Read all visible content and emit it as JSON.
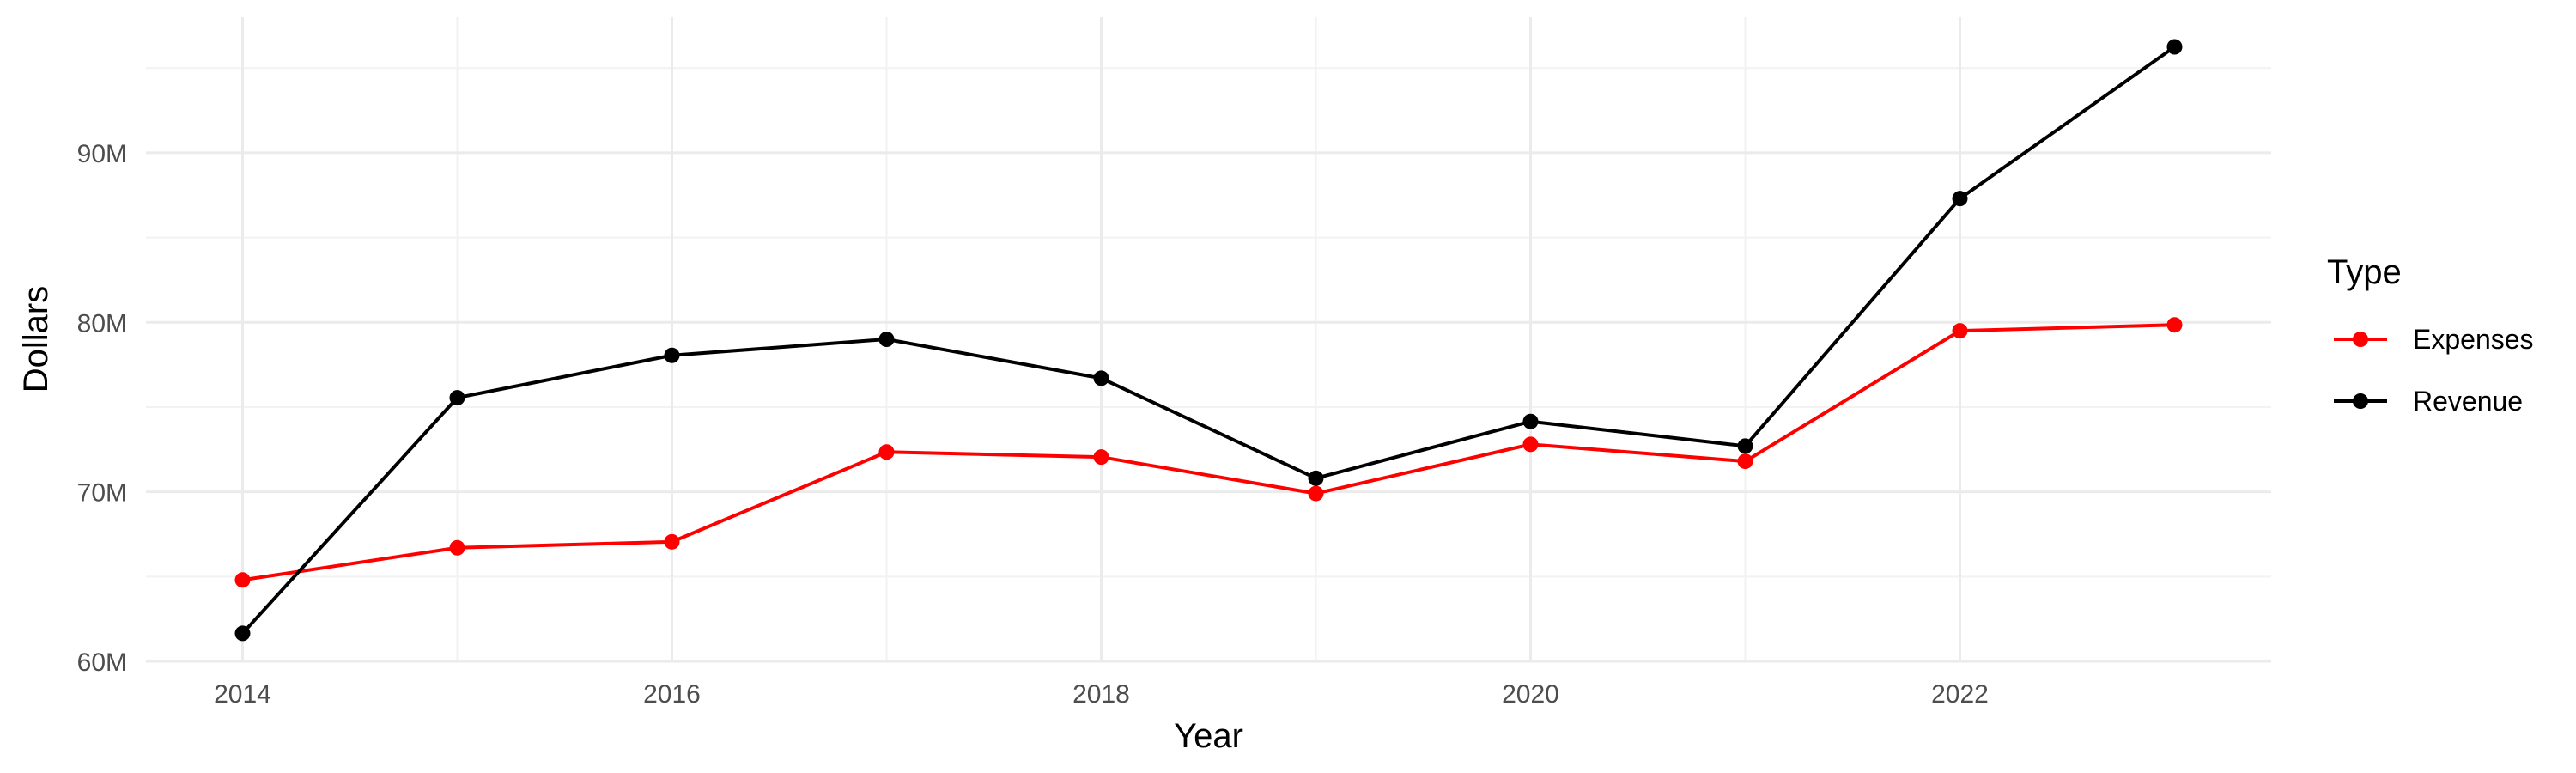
{
  "chart_data": {
    "type": "line",
    "title": "",
    "xlabel": "Year",
    "ylabel": "Dollars",
    "x": [
      2014,
      2015,
      2016,
      2017,
      2018,
      2019,
      2020,
      2021,
      2022,
      2023
    ],
    "x_ticks": [
      2014,
      2016,
      2018,
      2020,
      2022
    ],
    "x_tick_labels": [
      "2014",
      "2016",
      "2018",
      "2020",
      "2022"
    ],
    "y_ticks": [
      60000000,
      70000000,
      80000000,
      90000000
    ],
    "y_tick_labels": [
      "60M",
      "70M",
      "80M",
      "90M"
    ],
    "xlim": [
      2013.55,
      2023.45
    ],
    "ylim": [
      60000000,
      98000000
    ],
    "grid": true,
    "legend": {
      "title": "Type",
      "position": "right"
    },
    "series": [
      {
        "name": "Expenses",
        "color": "#ff0000",
        "values": [
          64800000,
          66700000,
          67050000,
          72350000,
          72050000,
          69900000,
          72800000,
          71800000,
          79500000,
          79850000
        ]
      },
      {
        "name": "Revenue",
        "color": "#000000",
        "values": [
          61650000,
          75550000,
          78050000,
          79000000,
          76700000,
          70800000,
          74150000,
          72700000,
          87300000,
          96250000
        ]
      }
    ]
  }
}
